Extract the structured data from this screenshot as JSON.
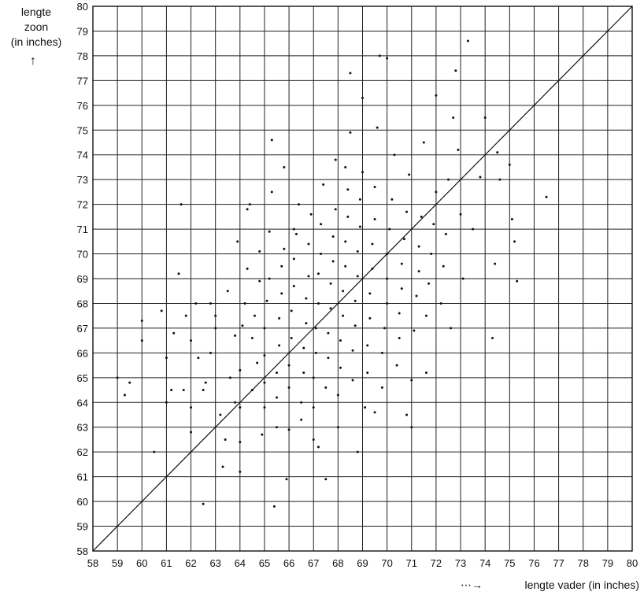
{
  "chart_data": {
    "type": "scatter",
    "title": "",
    "xlabel": "lengte vader  (in inches)",
    "ylabel": [
      "lengte",
      "zoon",
      "(in inches)"
    ],
    "xlim": [
      58,
      80
    ],
    "ylim": [
      58,
      80
    ],
    "x_ticks": [
      "58",
      "59",
      "60",
      "61",
      "62",
      "63",
      "64",
      "65",
      "66",
      "67",
      "68",
      "69",
      "70",
      "71",
      "72",
      "73",
      "74",
      "75",
      "76",
      "77",
      "78",
      "79",
      "80"
    ],
    "y_ticks": [
      "58",
      "59",
      "60",
      "61",
      "62",
      "63",
      "64",
      "65",
      "66",
      "67",
      "68",
      "69",
      "70",
      "71",
      "72",
      "73",
      "74",
      "75",
      "76",
      "77",
      "78",
      "79",
      "80"
    ],
    "grid": true,
    "reference_line": {
      "from": [
        58,
        58
      ],
      "to": [
        80,
        80
      ]
    },
    "points": [
      [
        59.0,
        65.0
      ],
      [
        59.3,
        64.3
      ],
      [
        59.5,
        64.8
      ],
      [
        60.0,
        67.3
      ],
      [
        60.0,
        66.5
      ],
      [
        60.5,
        62.0
      ],
      [
        60.8,
        67.7
      ],
      [
        61.0,
        64.0
      ],
      [
        61.0,
        65.8
      ],
      [
        61.2,
        64.5
      ],
      [
        61.3,
        66.8
      ],
      [
        61.5,
        69.2
      ],
      [
        61.7,
        64.5
      ],
      [
        61.8,
        67.5
      ],
      [
        62.0,
        62.8
      ],
      [
        62.0,
        66.5
      ],
      [
        62.0,
        63.8
      ],
      [
        62.3,
        65.8
      ],
      [
        62.5,
        59.9
      ],
      [
        62.5,
        64.5
      ],
      [
        62.6,
        64.8
      ],
      [
        62.8,
        66.0
      ],
      [
        62.8,
        68.0
      ],
      [
        63.0,
        67.0
      ],
      [
        63.2,
        63.5
      ],
      [
        63.3,
        61.4
      ],
      [
        63.4,
        62.5
      ],
      [
        63.5,
        68.5
      ],
      [
        63.6,
        65.0
      ],
      [
        63.8,
        64.0
      ],
      [
        63.8,
        66.7
      ],
      [
        63.9,
        70.5
      ],
      [
        64.0,
        61.2
      ],
      [
        64.0,
        62.4
      ],
      [
        64.0,
        63.8
      ],
      [
        64.0,
        65.3
      ],
      [
        64.1,
        67.1
      ],
      [
        64.2,
        68.0
      ],
      [
        64.3,
        69.4
      ],
      [
        64.3,
        71.8
      ],
      [
        64.5,
        64.5
      ],
      [
        64.5,
        66.6
      ],
      [
        64.6,
        67.5
      ],
      [
        64.7,
        65.6
      ],
      [
        64.8,
        68.9
      ],
      [
        64.8,
        70.1
      ],
      [
        64.9,
        62.7
      ],
      [
        65.0,
        63.8
      ],
      [
        65.0,
        64.8
      ],
      [
        65.0,
        65.9
      ],
      [
        65.0,
        67.0
      ],
      [
        65.1,
        68.1
      ],
      [
        65.2,
        69.0
      ],
      [
        65.2,
        70.9
      ],
      [
        65.3,
        72.5
      ],
      [
        65.3,
        74.6
      ],
      [
        65.4,
        59.8
      ],
      [
        65.5,
        63.0
      ],
      [
        65.5,
        64.2
      ],
      [
        65.5,
        65.2
      ],
      [
        65.6,
        66.3
      ],
      [
        65.6,
        67.4
      ],
      [
        65.7,
        68.4
      ],
      [
        65.7,
        69.5
      ],
      [
        65.8,
        70.2
      ],
      [
        65.8,
        73.5
      ],
      [
        66.0,
        62.9
      ],
      [
        66.0,
        64.6
      ],
      [
        66.0,
        65.5
      ],
      [
        66.1,
        66.6
      ],
      [
        66.1,
        67.7
      ],
      [
        66.2,
        68.7
      ],
      [
        66.2,
        69.8
      ],
      [
        66.3,
        70.8
      ],
      [
        66.4,
        72.0
      ],
      [
        66.5,
        63.3
      ],
      [
        66.5,
        64.0
      ],
      [
        66.6,
        65.2
      ],
      [
        66.6,
        66.2
      ],
      [
        66.7,
        67.2
      ],
      [
        66.7,
        68.2
      ],
      [
        66.8,
        69.1
      ],
      [
        66.8,
        70.4
      ],
      [
        66.9,
        71.6
      ],
      [
        67.0,
        62.5
      ],
      [
        67.0,
        63.8
      ],
      [
        67.0,
        65.0
      ],
      [
        67.1,
        66.0
      ],
      [
        67.1,
        67.0
      ],
      [
        67.2,
        68.0
      ],
      [
        67.2,
        69.2
      ],
      [
        67.3,
        70.0
      ],
      [
        67.3,
        71.2
      ],
      [
        67.4,
        72.8
      ],
      [
        67.5,
        60.9
      ],
      [
        67.5,
        64.6
      ],
      [
        67.6,
        65.8
      ],
      [
        67.6,
        66.8
      ],
      [
        67.7,
        67.8
      ],
      [
        67.7,
        68.8
      ],
      [
        67.8,
        69.7
      ],
      [
        67.8,
        70.7
      ],
      [
        67.9,
        71.8
      ],
      [
        67.9,
        73.8
      ],
      [
        68.0,
        63.0
      ],
      [
        68.0,
        64.3
      ],
      [
        68.1,
        65.4
      ],
      [
        68.1,
        66.5
      ],
      [
        68.2,
        67.5
      ],
      [
        68.2,
        68.5
      ],
      [
        68.3,
        69.5
      ],
      [
        68.3,
        70.5
      ],
      [
        68.4,
        71.5
      ],
      [
        68.4,
        72.6
      ],
      [
        68.5,
        74.9
      ],
      [
        68.5,
        77.3
      ],
      [
        68.6,
        64.9
      ],
      [
        68.6,
        66.1
      ],
      [
        68.7,
        67.1
      ],
      [
        68.7,
        68.1
      ],
      [
        68.8,
        69.1
      ],
      [
        68.8,
        70.1
      ],
      [
        68.9,
        71.1
      ],
      [
        68.9,
        72.2
      ],
      [
        69.0,
        73.3
      ],
      [
        69.0,
        76.3
      ],
      [
        69.1,
        63.8
      ],
      [
        69.2,
        65.2
      ],
      [
        69.2,
        66.3
      ],
      [
        69.3,
        67.4
      ],
      [
        69.3,
        68.4
      ],
      [
        69.4,
        69.4
      ],
      [
        69.4,
        70.4
      ],
      [
        69.5,
        71.4
      ],
      [
        69.5,
        72.7
      ],
      [
        69.6,
        75.1
      ],
      [
        69.7,
        78.0
      ],
      [
        69.8,
        64.6
      ],
      [
        69.8,
        66.0
      ],
      [
        69.9,
        67.0
      ],
      [
        70.0,
        68.0
      ],
      [
        70.0,
        69.0
      ],
      [
        70.0,
        70.0
      ],
      [
        70.1,
        71.0
      ],
      [
        70.2,
        72.2
      ],
      [
        70.3,
        74.0
      ],
      [
        70.4,
        65.5
      ],
      [
        70.5,
        66.6
      ],
      [
        70.5,
        67.6
      ],
      [
        70.6,
        68.6
      ],
      [
        70.6,
        69.6
      ],
      [
        70.7,
        70.6
      ],
      [
        70.8,
        71.7
      ],
      [
        70.9,
        73.2
      ],
      [
        71.0,
        63.0
      ],
      [
        71.0,
        64.9
      ],
      [
        71.1,
        66.9
      ],
      [
        71.2,
        68.3
      ],
      [
        71.3,
        69.3
      ],
      [
        71.3,
        70.3
      ],
      [
        71.4,
        71.5
      ],
      [
        71.5,
        74.5
      ],
      [
        71.6,
        67.5
      ],
      [
        71.7,
        68.8
      ],
      [
        71.8,
        70.0
      ],
      [
        71.9,
        71.2
      ],
      [
        72.0,
        72.5
      ],
      [
        72.0,
        76.4
      ],
      [
        72.2,
        68.0
      ],
      [
        72.3,
        69.5
      ],
      [
        72.4,
        70.8
      ],
      [
        72.5,
        73.0
      ],
      [
        72.6,
        67.0
      ],
      [
        72.7,
        75.5
      ],
      [
        72.8,
        77.4
      ],
      [
        72.9,
        74.2
      ],
      [
        73.0,
        71.6
      ],
      [
        73.1,
        69.0
      ],
      [
        73.3,
        78.6
      ],
      [
        73.5,
        71.0
      ],
      [
        73.8,
        73.1
      ],
      [
        74.0,
        75.5
      ],
      [
        74.3,
        66.6
      ],
      [
        74.4,
        69.6
      ],
      [
        74.5,
        74.1
      ],
      [
        74.6,
        73.0
      ],
      [
        75.0,
        73.6
      ],
      [
        75.1,
        71.4
      ],
      [
        75.2,
        70.5
      ],
      [
        75.3,
        68.9
      ],
      [
        76.5,
        72.3
      ],
      [
        70.0,
        77.9
      ],
      [
        68.3,
        73.5
      ],
      [
        66.2,
        71.0
      ],
      [
        64.4,
        72.0
      ],
      [
        63.0,
        67.5
      ],
      [
        62.2,
        68.0
      ],
      [
        61.6,
        72.0
      ],
      [
        65.9,
        60.9
      ],
      [
        67.2,
        62.2
      ],
      [
        68.8,
        62.0
      ],
      [
        69.5,
        63.6
      ],
      [
        70.8,
        63.5
      ],
      [
        71.6,
        65.2
      ]
    ]
  }
}
